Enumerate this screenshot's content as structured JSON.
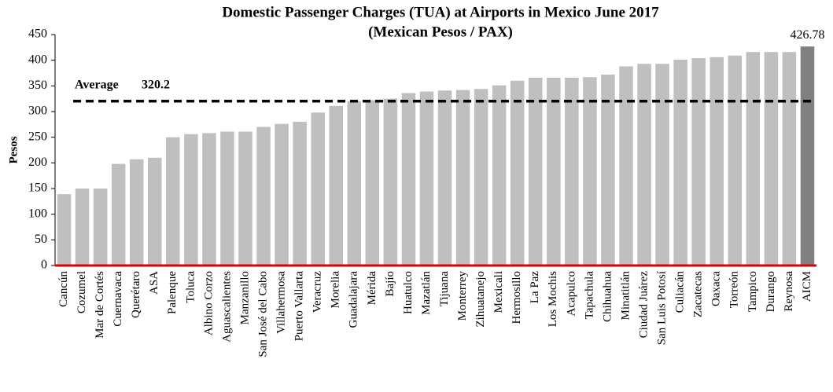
{
  "chart_data": {
    "type": "bar",
    "title": "Domestic Passenger Charges (TUA) at Airports in Mexico June 2017",
    "subtitle": "(Mexican Pesos / PAX)",
    "y_label": "Pesos",
    "categories": [
      "Cancún",
      "Cozumel",
      "Mar de Cortés",
      "Cuernavaca",
      "Querétaro",
      "ASA",
      "Palenque",
      "Toluca",
      "Albino Corzo",
      "Aguascalientes",
      "Manzanillo",
      "San José del Cabo",
      "Villahermosa",
      "Puerto Vallarta",
      "Veracruz",
      "Morelia",
      "Guadalajara",
      "Mérida",
      "Bajío",
      "Huatulco",
      "Mazatlán",
      "Tijuana",
      "Monterrey",
      "Zihuatanejo",
      "Mexicali",
      "Hermosillo",
      "La Paz",
      "Los Mochis",
      "Acapulco",
      "Tapachula",
      "Chihuahua",
      "Minatitlán",
      "Ciudad Juárez",
      "San Luis Potosí",
      "Culiacán",
      "Zacatecas",
      "Oaxaca",
      "Torreón",
      "Tampico",
      "Durango",
      "Reynosa",
      "AICM"
    ],
    "values": [
      139,
      150,
      150,
      198,
      207,
      210,
      250,
      256,
      258,
      261,
      261,
      270,
      276,
      280,
      298,
      311,
      320,
      322,
      325,
      336,
      339,
      341,
      342,
      344,
      351,
      360,
      366,
      366,
      366,
      367,
      372,
      388,
      393,
      393,
      401,
      404,
      406,
      409,
      416,
      416,
      416,
      426.78
    ],
    "colors": [
      "#bfbfbf",
      "#bfbfbf",
      "#bfbfbf",
      "#bfbfbf",
      "#bfbfbf",
      "#bfbfbf",
      "#bfbfbf",
      "#bfbfbf",
      "#bfbfbf",
      "#bfbfbf",
      "#bfbfbf",
      "#bfbfbf",
      "#bfbfbf",
      "#bfbfbf",
      "#bfbfbf",
      "#bfbfbf",
      "#bfbfbf",
      "#bfbfbf",
      "#bfbfbf",
      "#bfbfbf",
      "#bfbfbf",
      "#bfbfbf",
      "#bfbfbf",
      "#bfbfbf",
      "#bfbfbf",
      "#bfbfbf",
      "#bfbfbf",
      "#bfbfbf",
      "#bfbfbf",
      "#bfbfbf",
      "#bfbfbf",
      "#bfbfbf",
      "#bfbfbf",
      "#bfbfbf",
      "#bfbfbf",
      "#bfbfbf",
      "#bfbfbf",
      "#bfbfbf",
      "#bfbfbf",
      "#bfbfbf",
      "#bfbfbf",
      "#808080"
    ],
    "average": {
      "label": "Average",
      "value": 320.2
    },
    "ylim": [
      0,
      450
    ],
    "yticks": [
      0,
      50,
      100,
      150,
      200,
      250,
      300,
      350,
      400,
      450
    ],
    "grid": false
  }
}
